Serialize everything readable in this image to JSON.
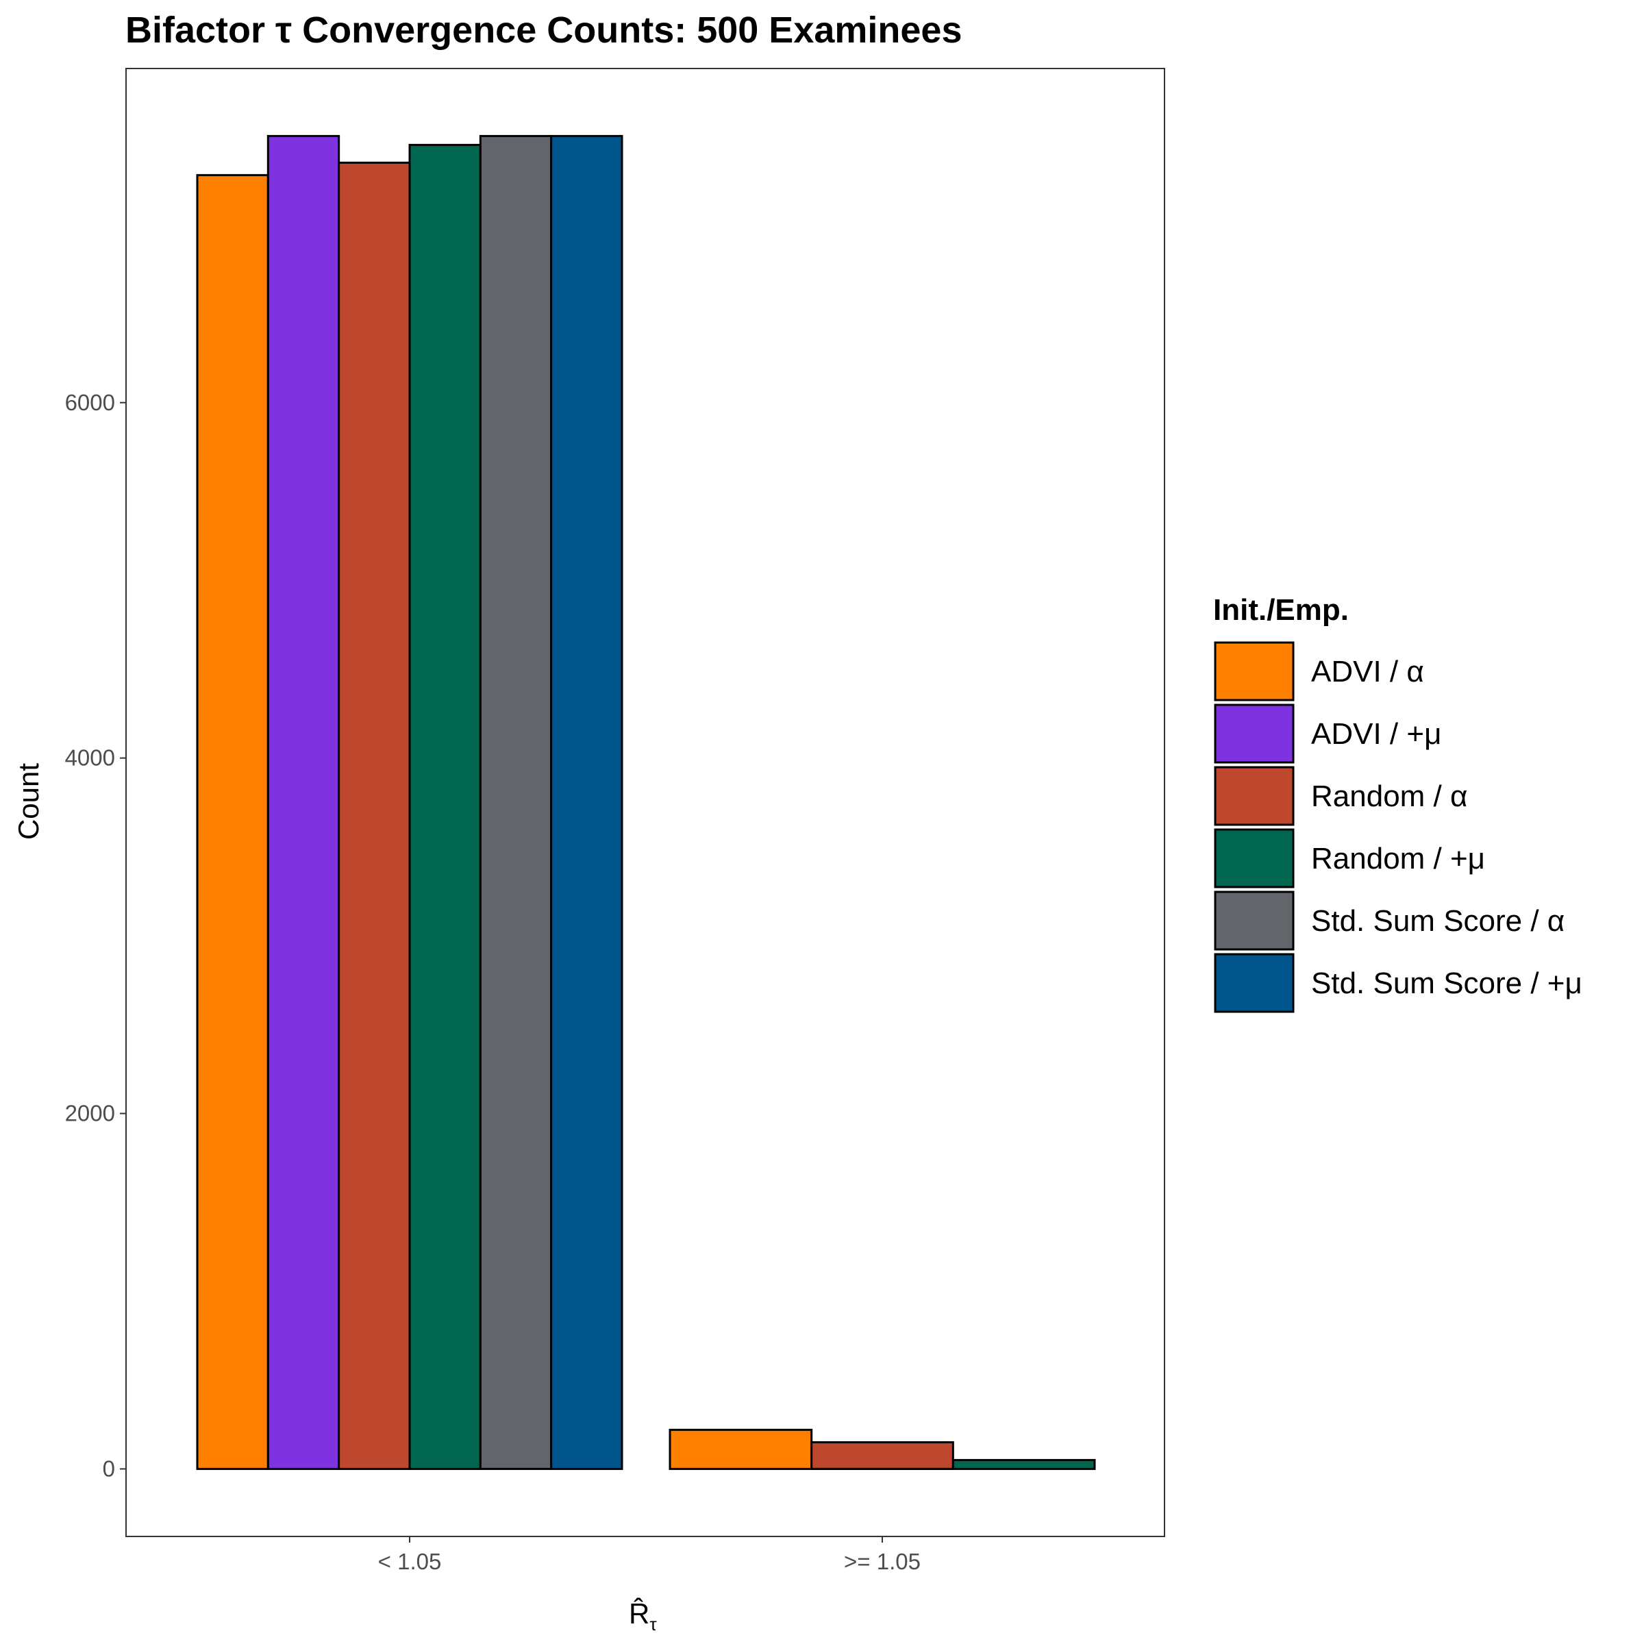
{
  "chart_data": {
    "type": "bar",
    "title": "Bifactor τ Convergence Counts: 500 Examinees",
    "xlabel": "R̂",
    "xlabel_subscript": "τ",
    "ylabel": "Count",
    "categories": [
      "< 1.05",
      ">= 1.05"
    ],
    "yticks": [
      0,
      2000,
      4000,
      6000
    ],
    "ylim": [
      -380,
      7880
    ],
    "grid": false,
    "legend": {
      "title": "Init./Emp.",
      "position": "right"
    },
    "series": [
      {
        "name": "ADVI / α",
        "color": "#FF8000",
        "values": [
          7280,
          220
        ]
      },
      {
        "name": "ADVI / +μ",
        "color": "#7F33E0",
        "values": [
          7500,
          0
        ]
      },
      {
        "name": "Random / α",
        "color": "#BD482D",
        "values": [
          7350,
          150
        ]
      },
      {
        "name": "Random / +μ",
        "color": "#006650",
        "values": [
          7450,
          50
        ]
      },
      {
        "name": "Std. Sum Score / α",
        "color": "#626569",
        "values": [
          7500,
          0
        ]
      },
      {
        "name": "Std. Sum Score / +μ",
        "color": "#00558C",
        "values": [
          7500,
          0
        ]
      }
    ]
  }
}
